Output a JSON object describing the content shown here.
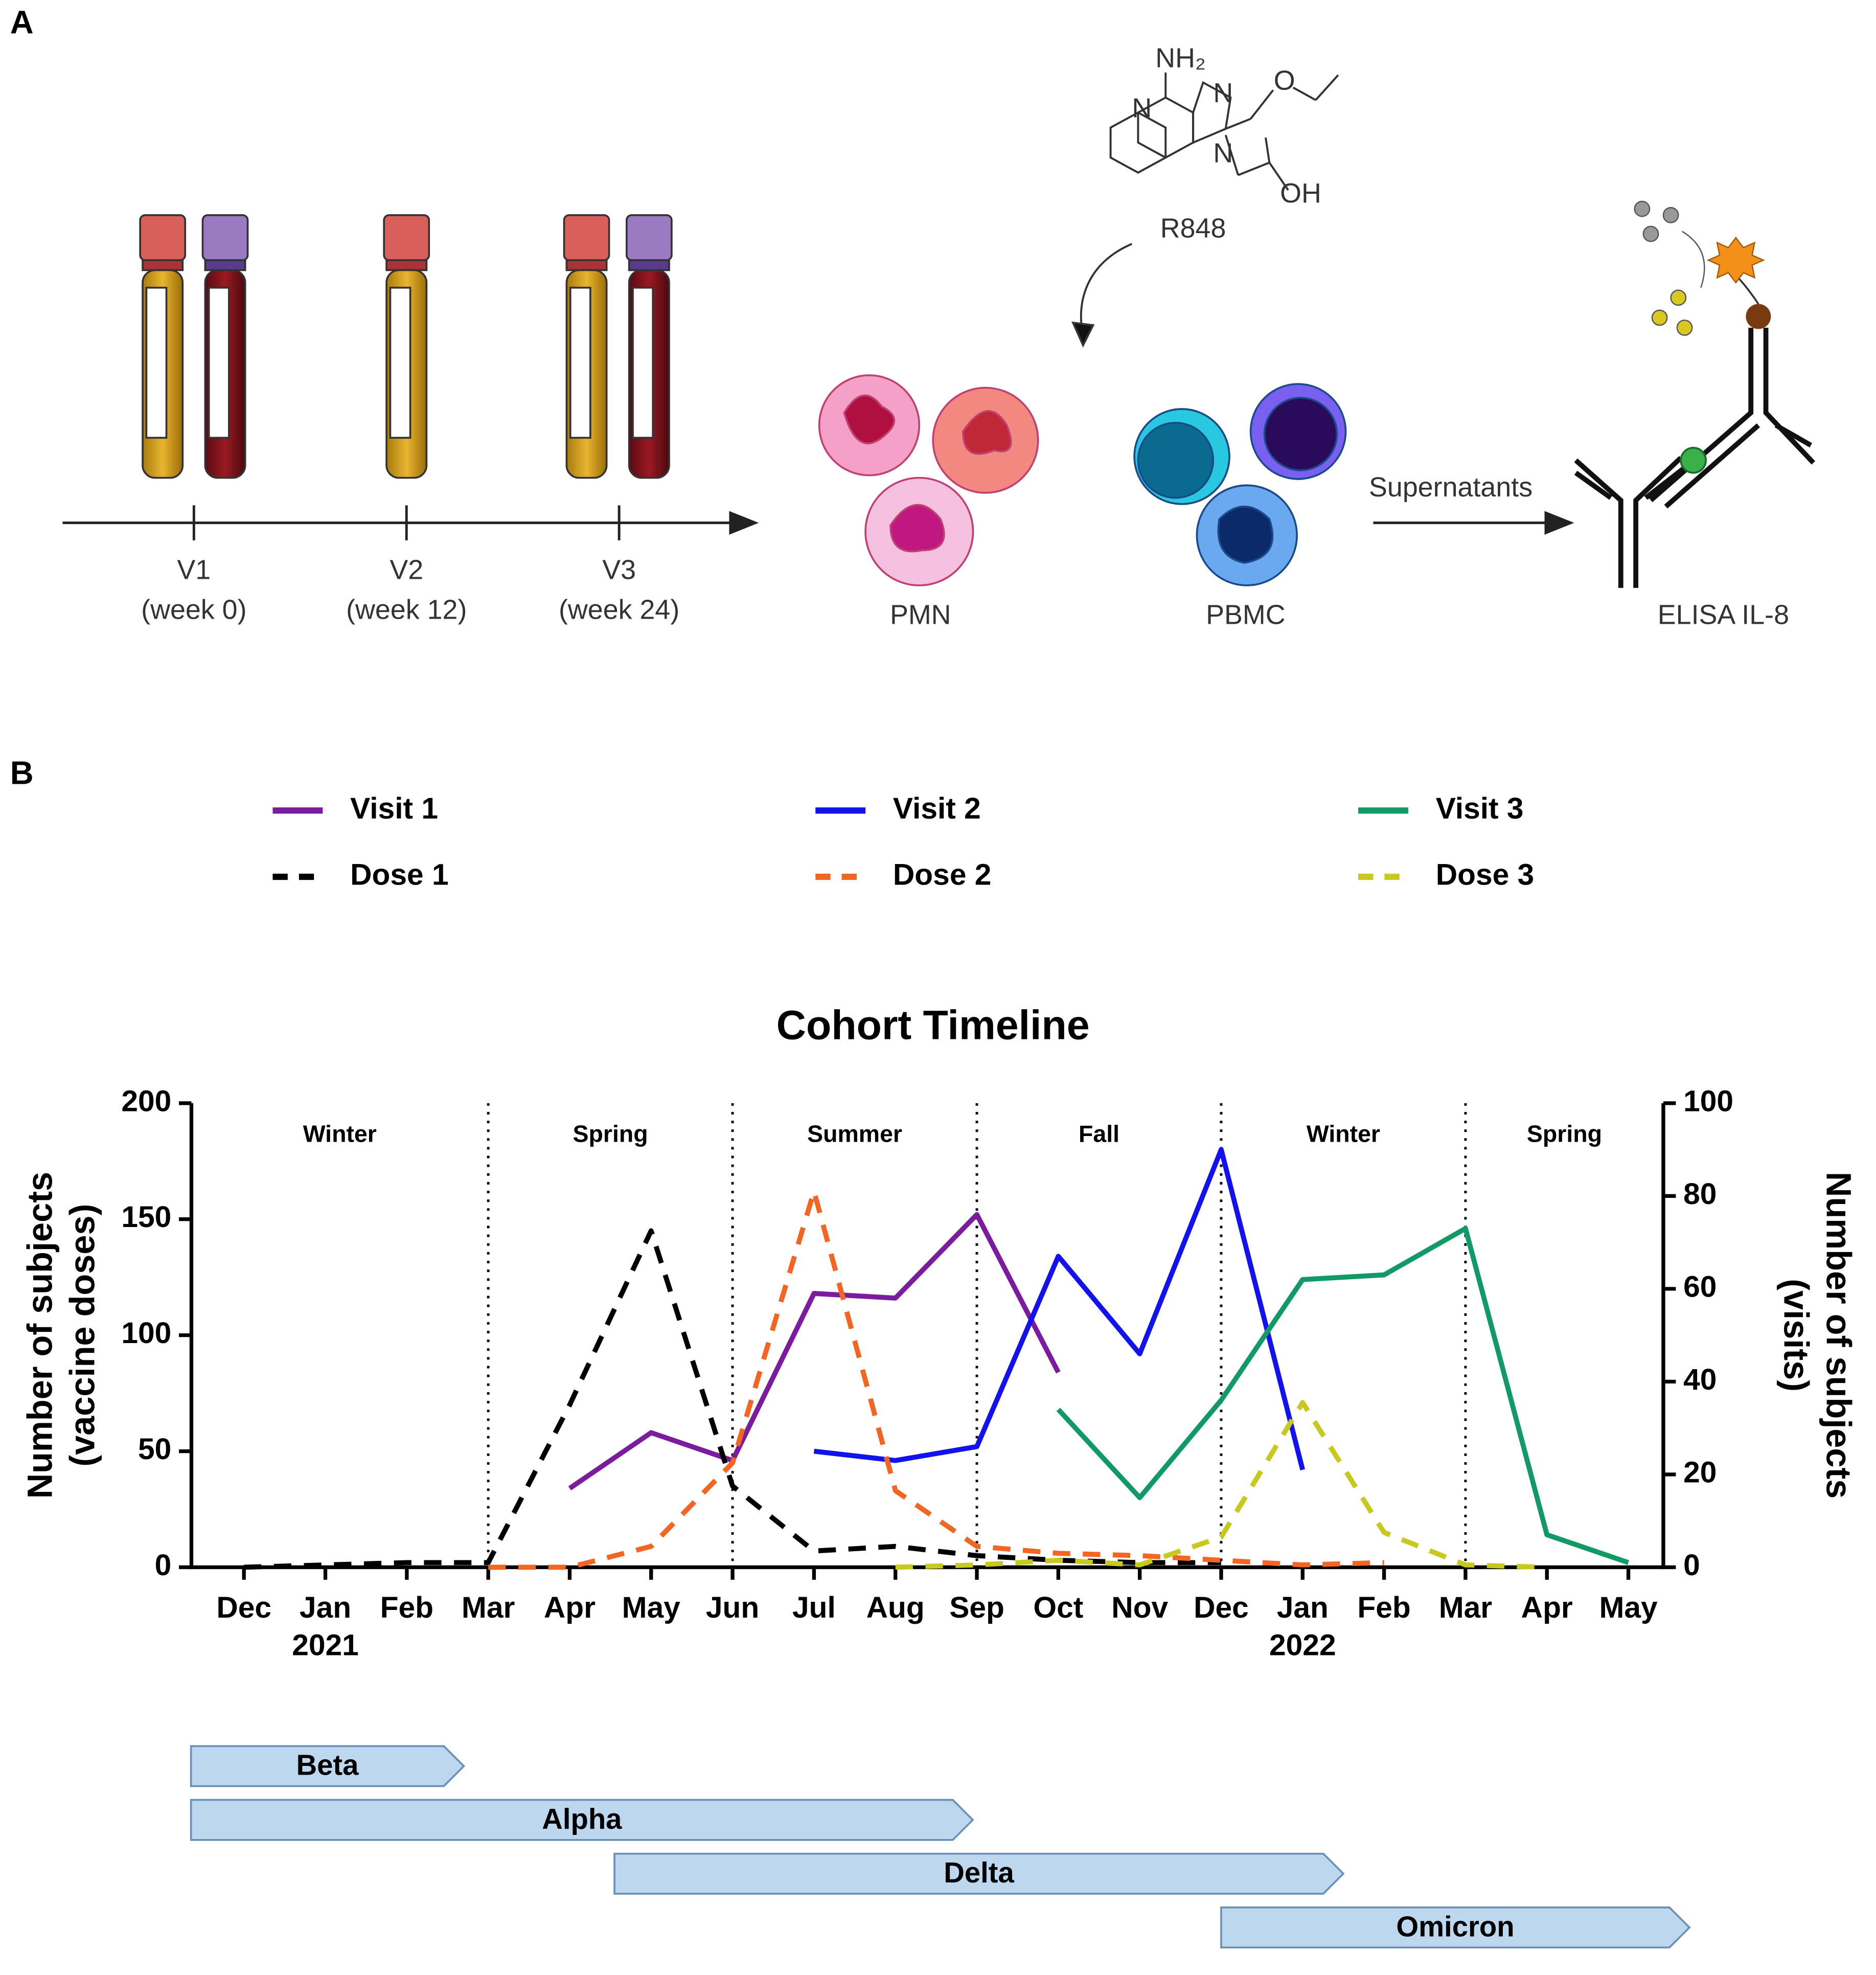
{
  "panel_labels": {
    "a": "A",
    "b": "B"
  },
  "panel_a": {
    "visits": [
      {
        "name": "V1",
        "week": "(week 0)"
      },
      {
        "name": "V2",
        "week": "(week 12)"
      },
      {
        "name": "V3",
        "week": "(week 24)"
      }
    ],
    "molecule": {
      "amine": "NH₂",
      "n1": "N",
      "n2": "N",
      "n3": "N",
      "o": "O",
      "oh": "OH",
      "name": "R848"
    },
    "cells": [
      "PMN",
      "PBMC"
    ],
    "arrow_label": "Supernatants",
    "assay": "ELISA IL-8"
  },
  "chart_data": {
    "type": "line",
    "title": "Cohort Timeline",
    "categories": [
      "Dec",
      "Jan",
      "Feb",
      "Mar",
      "Apr",
      "May",
      "Jun",
      "Jul",
      "Aug",
      "Sep",
      "Oct",
      "Nov",
      "Dec",
      "Jan",
      "Feb",
      "Mar",
      "Apr",
      "May"
    ],
    "category_years": [
      null,
      "2021",
      null,
      null,
      null,
      null,
      null,
      null,
      null,
      null,
      null,
      null,
      null,
      "2022",
      null,
      null,
      null,
      null
    ],
    "ylabel": [
      "Number of subjects",
      "(vaccine doses)"
    ],
    "y2label": [
      "Number of subjects",
      "(visits)"
    ],
    "ylim": [
      0,
      200
    ],
    "yticks": [
      0,
      50,
      100,
      150,
      200
    ],
    "y2lim": [
      0,
      100
    ],
    "y2ticks": [
      0,
      20,
      40,
      60,
      80,
      100
    ],
    "seasons": [
      "Winter",
      "Spring",
      "Summer",
      "Fall",
      "Winter",
      "Spring"
    ],
    "season_boundaries": [
      3,
      6,
      9,
      12,
      15
    ],
    "series": [
      {
        "name": "Visit 1",
        "color": "#7b1b9e",
        "axis": "y2",
        "style": "solid",
        "values": [
          null,
          null,
          null,
          null,
          17,
          29,
          23,
          59,
          58,
          76,
          42,
          null,
          null,
          null,
          null,
          null,
          null,
          null
        ]
      },
      {
        "name": "Visit 2",
        "color": "#1212ee",
        "axis": "y2",
        "style": "solid",
        "values": [
          null,
          null,
          null,
          null,
          null,
          null,
          null,
          25,
          23,
          26,
          67,
          46,
          90,
          21,
          null,
          null,
          null,
          null
        ]
      },
      {
        "name": "Visit 3",
        "color": "#119a66",
        "axis": "y2",
        "style": "solid",
        "values": [
          null,
          null,
          null,
          null,
          null,
          null,
          null,
          null,
          null,
          null,
          34,
          15,
          36,
          62,
          63,
          73,
          7,
          1
        ]
      },
      {
        "name": "Dose 1",
        "color": "#000000",
        "axis": "y",
        "style": "dashed",
        "values": [
          0,
          1,
          2,
          2,
          70,
          145,
          35,
          7,
          9,
          5,
          3,
          2,
          2,
          null,
          null,
          null,
          null,
          null
        ]
      },
      {
        "name": "Dose 2",
        "color": "#f26522",
        "axis": "y",
        "style": "dashed",
        "values": [
          null,
          null,
          null,
          0,
          0,
          9,
          45,
          162,
          33,
          9,
          6,
          5,
          3,
          1,
          2,
          null,
          null,
          null
        ]
      },
      {
        "name": "Dose 3",
        "color": "#c8c81e",
        "axis": "y",
        "style": "dashed",
        "values": [
          null,
          null,
          null,
          null,
          null,
          null,
          null,
          null,
          0,
          1,
          3,
          1,
          13,
          71,
          15,
          1,
          0,
          null
        ]
      }
    ],
    "variants": [
      {
        "name": "Beta",
        "start": -0.65,
        "end": 2.7
      },
      {
        "name": "Alpha",
        "start": -0.65,
        "end": 8.95
      },
      {
        "name": "Delta",
        "start": 4.55,
        "end": 13.5
      },
      {
        "name": "Omicron",
        "start": 12,
        "end": 17.75
      }
    ]
  }
}
